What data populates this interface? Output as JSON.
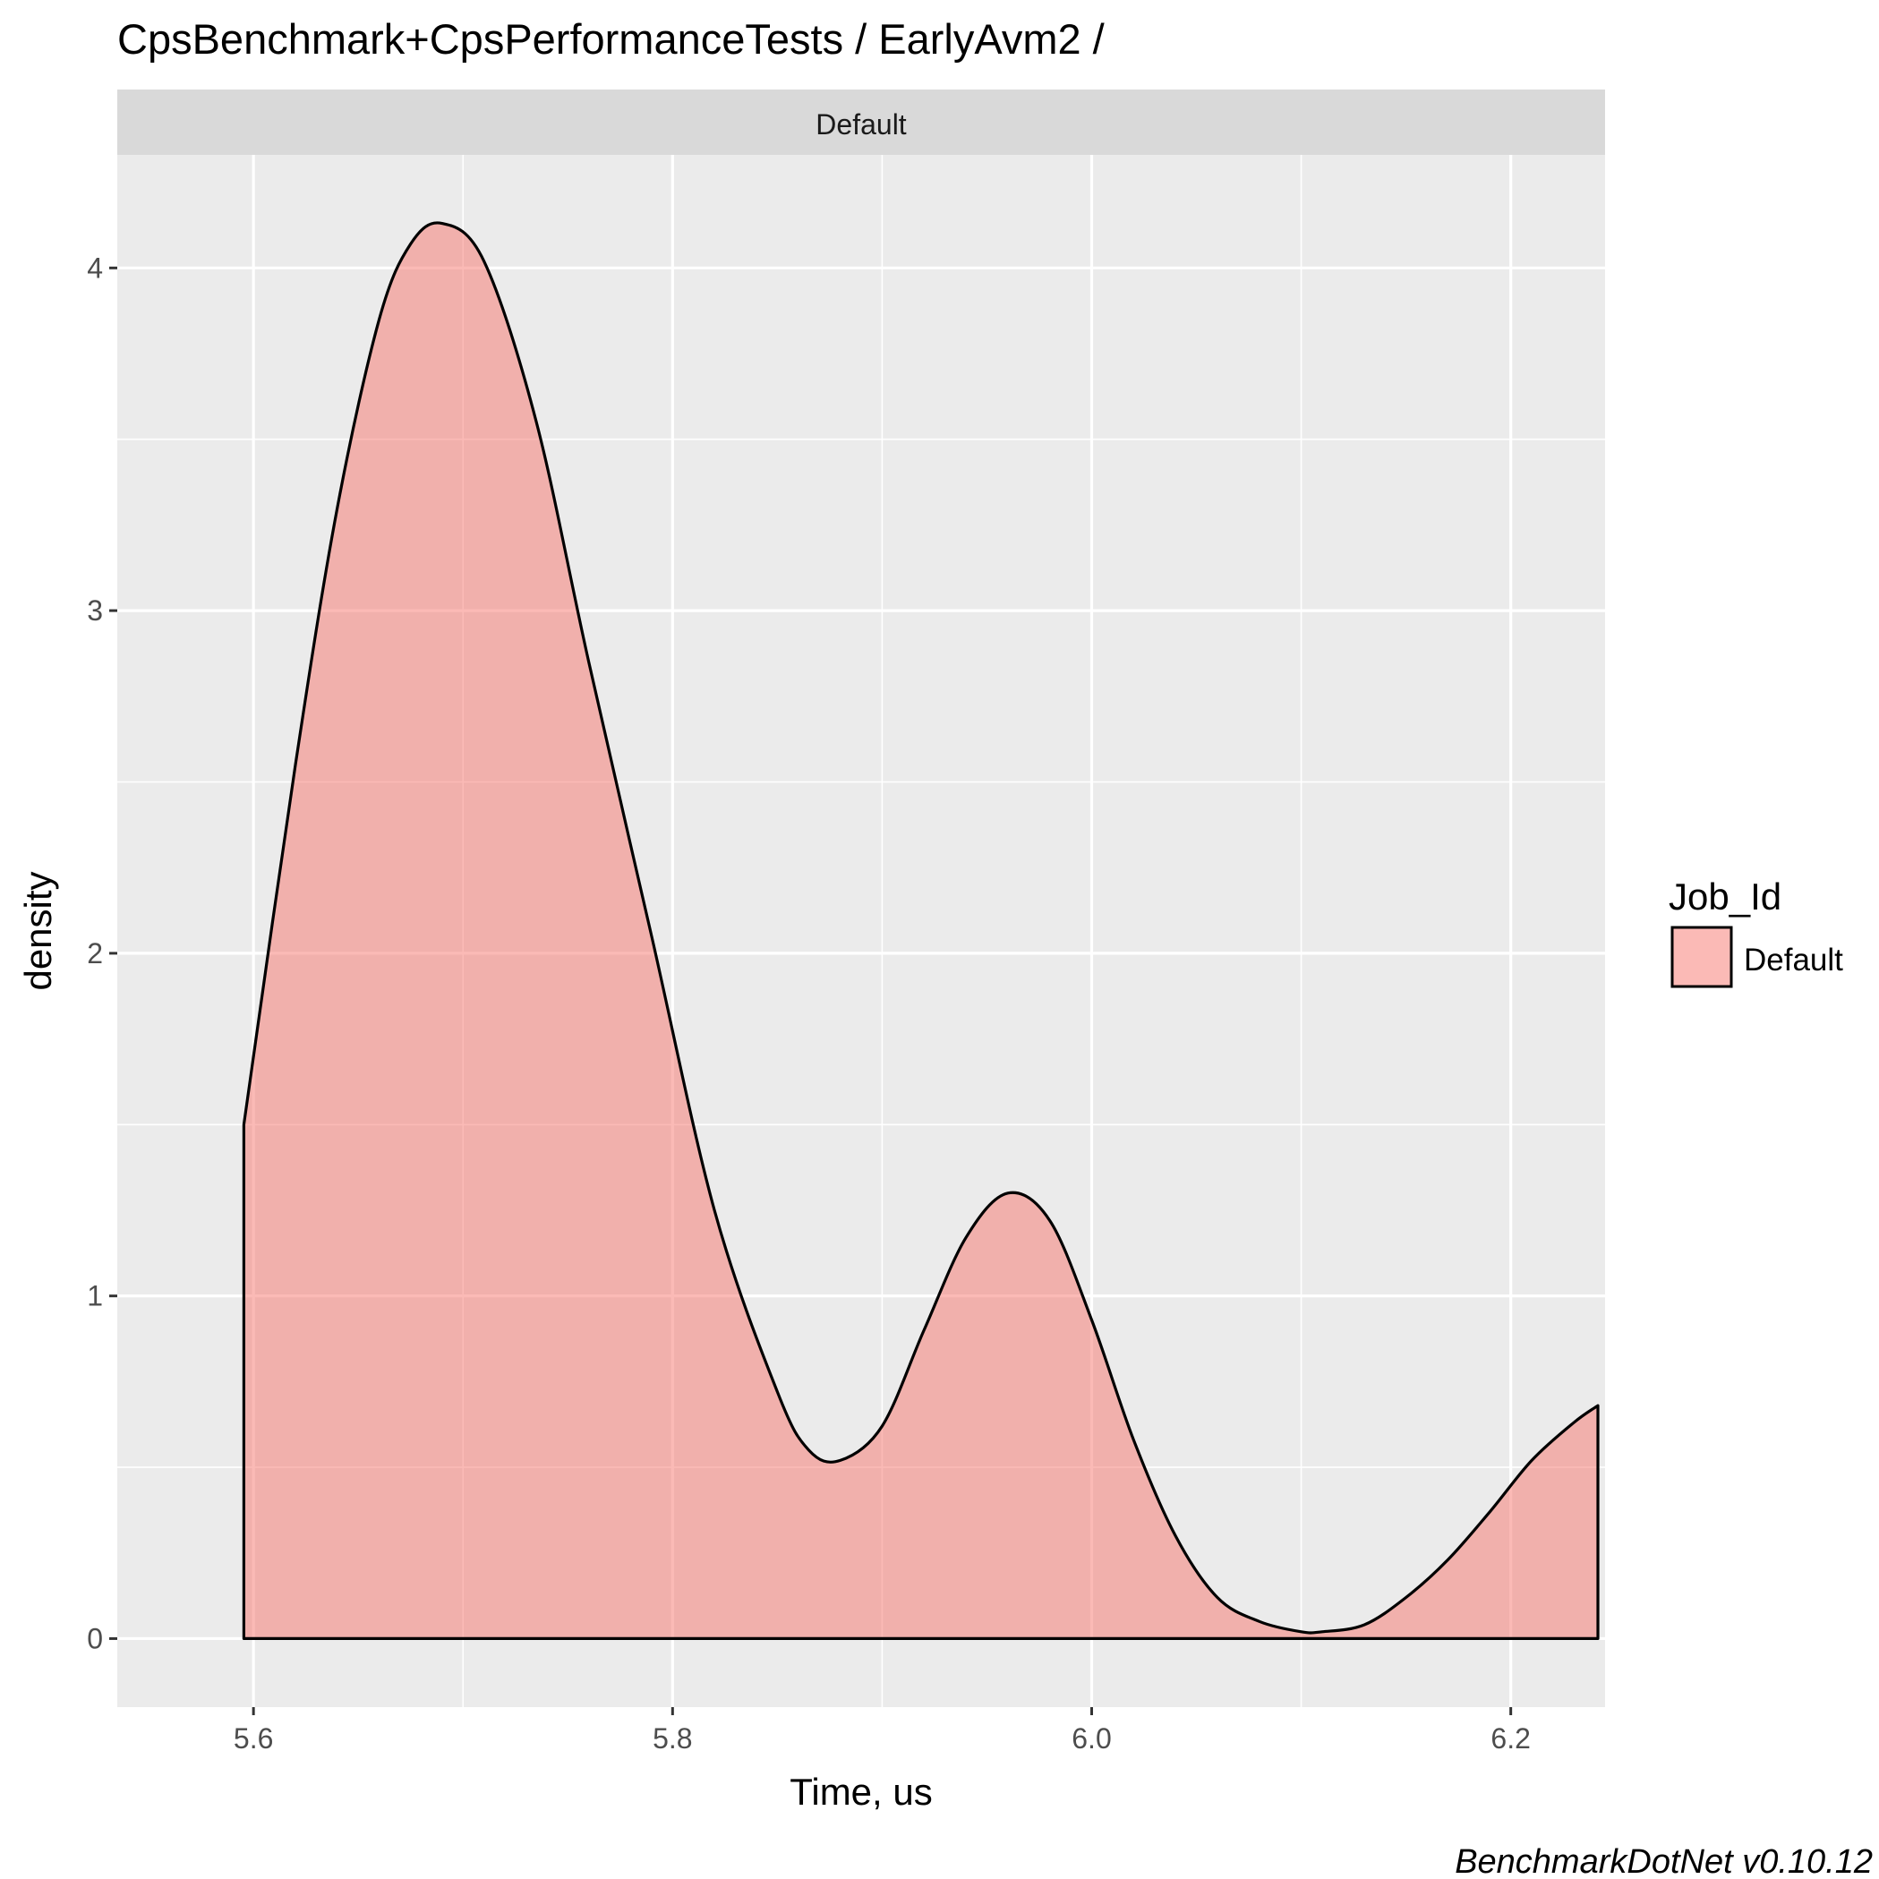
{
  "chart_data": {
    "type": "area",
    "title": "CpsBenchmark+CpsPerformanceTests / EarlyAvm2 /",
    "facet_label": "Default",
    "xlabel": "Time, us",
    "ylabel": "density",
    "caption": "BenchmarkDotNet v0.10.12",
    "x_ticks": [
      "5.6",
      "5.8",
      "6.0",
      "6.2"
    ],
    "y_ticks": [
      "0",
      "1",
      "2",
      "3",
      "4"
    ],
    "xlim": [
      5.535,
      6.245
    ],
    "ylim": [
      -0.2,
      4.33
    ],
    "grid": true,
    "legend": {
      "title": "Job_Id",
      "position": "right",
      "entries": [
        {
          "label": "Default",
          "color": "#F8766D"
        }
      ]
    },
    "series": [
      {
        "name": "Default",
        "fill": "#F8766D",
        "x": [
          5.5954,
          5.62,
          5.64,
          5.66,
          5.675,
          5.69,
          5.71,
          5.735,
          5.76,
          5.79,
          5.82,
          5.85,
          5.865,
          5.88,
          5.9,
          5.92,
          5.94,
          5.96,
          5.98,
          6.0,
          6.02,
          6.04,
          6.06,
          6.08,
          6.1,
          6.11,
          6.13,
          6.15,
          6.17,
          6.19,
          6.21,
          6.23,
          6.2416
        ],
        "y": [
          1.5,
          2.55,
          3.3,
          3.85,
          4.07,
          4.13,
          4.02,
          3.55,
          2.85,
          2.05,
          1.25,
          0.72,
          0.55,
          0.52,
          0.62,
          0.9,
          1.17,
          1.3,
          1.22,
          0.93,
          0.58,
          0.3,
          0.12,
          0.05,
          0.02,
          0.02,
          0.04,
          0.12,
          0.23,
          0.37,
          0.52,
          0.63,
          0.68
        ]
      }
    ]
  }
}
